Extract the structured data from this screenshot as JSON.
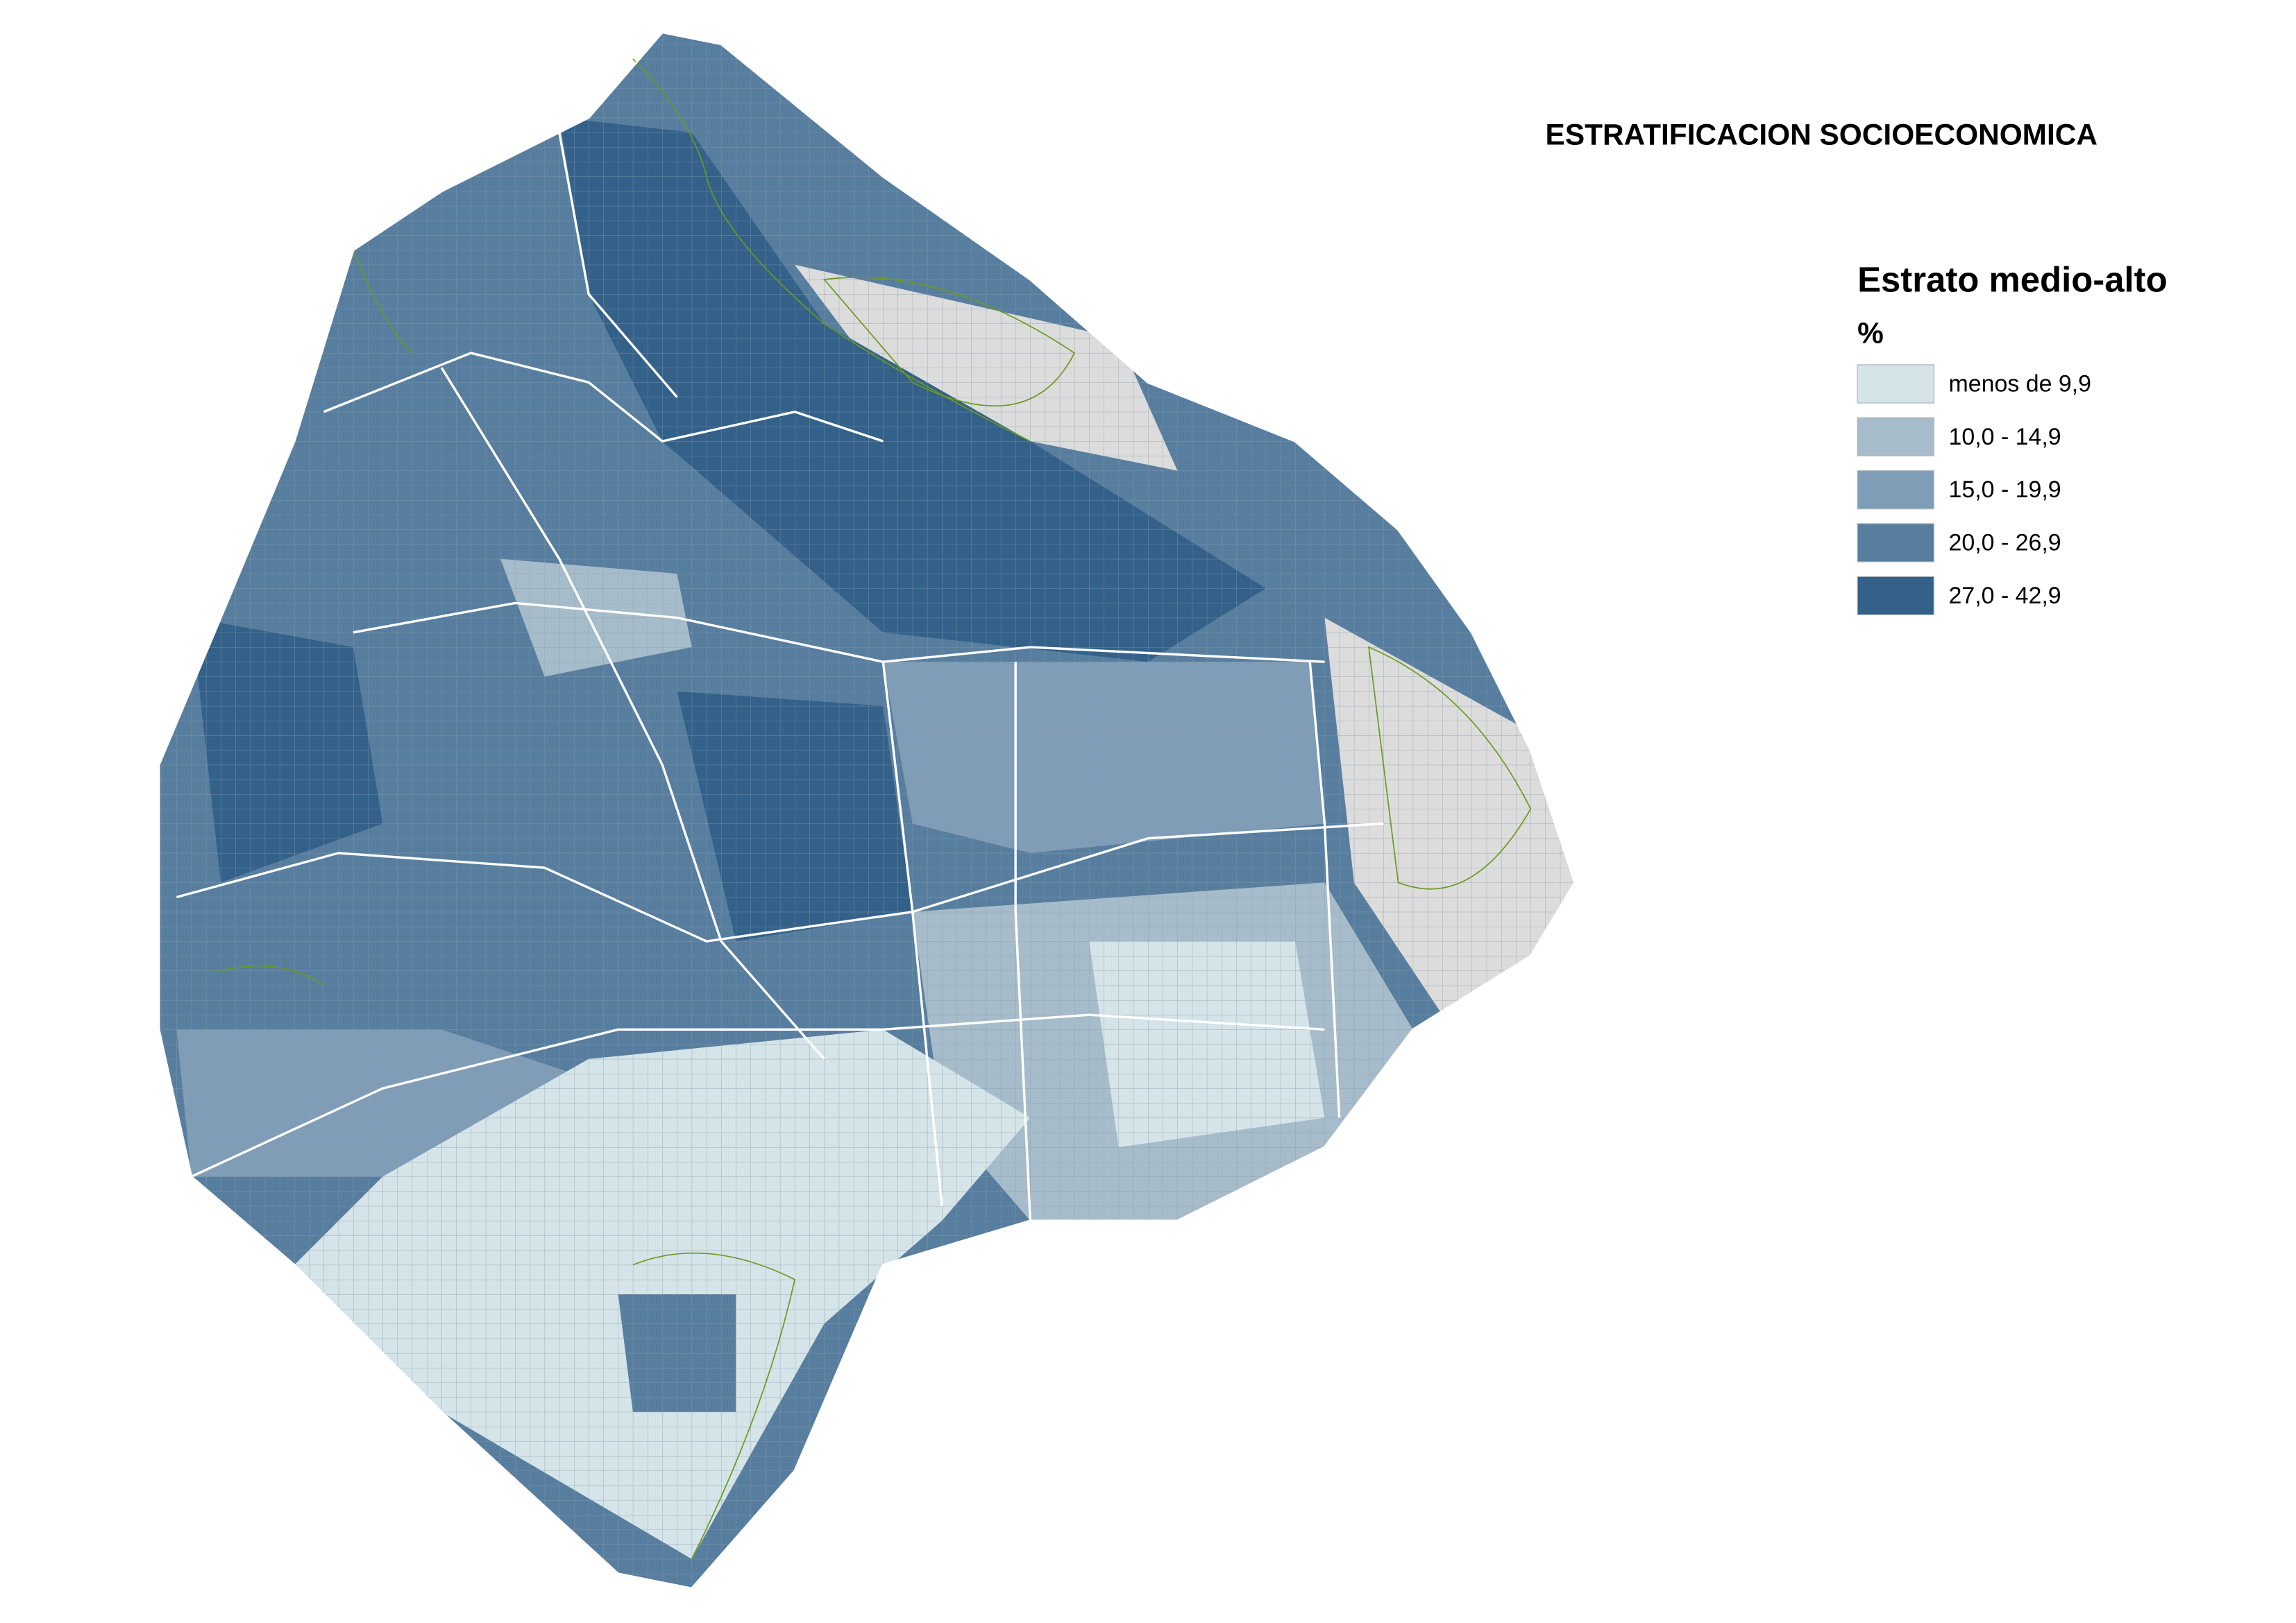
{
  "title": "ESTRATIFICACION SOCIOECONOMICA",
  "legend": {
    "title": "Estrato medio-alto",
    "unit": "%",
    "items": [
      {
        "label": "menos de 9,9",
        "color": "#d4e4e8"
      },
      {
        "label": "10,0 - 14,9",
        "color": "#a7bccb"
      },
      {
        "label": "15,0 - 19,9",
        "color": "#7f9db6"
      },
      {
        "label": "20,0 - 26,9",
        "color": "#587e9f"
      },
      {
        "label": "27,0 - 42,9",
        "color": "#33618a"
      }
    ]
  }
}
